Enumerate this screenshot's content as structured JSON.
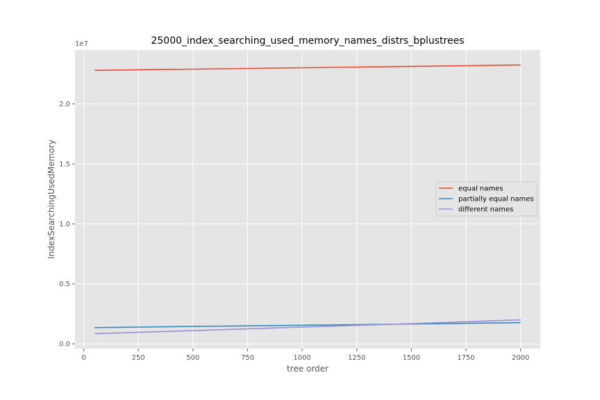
{
  "chart_data": {
    "type": "line",
    "title": "25000_index_searching_used_memory_names_distrs_bplustrees",
    "xlabel": "tree order",
    "ylabel": "IndexSearchingUsedMemory",
    "y_offset_label": "1e7",
    "xlim": [
      -40,
      2090
    ],
    "ylim": [
      -0.04,
      2.45
    ],
    "x_ticks": [
      0,
      250,
      500,
      750,
      1000,
      1250,
      1500,
      1750,
      2000
    ],
    "x_tick_labels": [
      "0",
      "250",
      "500",
      "750",
      "1000",
      "1250",
      "1500",
      "1750",
      "2000"
    ],
    "y_ticks": [
      0.0,
      0.5,
      1.0,
      1.5,
      2.0
    ],
    "y_tick_labels": [
      "0.0",
      "0.5",
      "1.0",
      "1.5",
      "2.0"
    ],
    "grid": true,
    "legend_position": "center-right",
    "series": [
      {
        "name": "equal names",
        "color": "#e24a33",
        "x": [
          50,
          2000
        ],
        "y": [
          2.28,
          2.325
        ]
      },
      {
        "name": "partially equal names",
        "color": "#348abd",
        "x": [
          50,
          500,
          1000,
          1500,
          2000
        ],
        "y": [
          0.135,
          0.145,
          0.155,
          0.165,
          0.177
        ]
      },
      {
        "name": "different names",
        "color": "#988ed5",
        "x": [
          50,
          500,
          1000,
          1500,
          2000
        ],
        "y": [
          0.085,
          0.11,
          0.14,
          0.168,
          0.2
        ]
      }
    ]
  }
}
